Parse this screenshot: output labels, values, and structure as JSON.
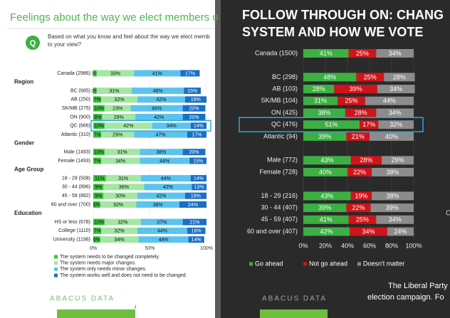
{
  "chart_data": [
    {
      "type": "bar",
      "orientation": "horizontal",
      "stacked": true,
      "title": "Feelings about the way we elect members o",
      "badge": "Q",
      "question": [
        "Based on what you know and feel about the way we elect memb",
        "to your view?"
      ],
      "categories": [
        "Canada (2986)",
        "BC (685)",
        "AB (250)",
        "SK/MB (275)",
        "ON (900)",
        "QC (666)",
        "Atlantic (310)",
        "Male (1493)",
        "Female (1493)",
        "18 - 29 (508)",
        "30 - 44 (896)",
        "45 - 59 (882)",
        "60 and over (700)",
        "HS or less (678)",
        "College (1110)",
        "University (1198)"
      ],
      "sections": [
        {
          "label": "Region",
          "start": 1
        },
        {
          "label": "Gender",
          "start": 7
        },
        {
          "label": "Age Group",
          "start": 9
        },
        {
          "label": "Education",
          "start": 13
        }
      ],
      "series": [
        {
          "name": "The system needs to be changed completely.",
          "color": "#3cc13c",
          "values": [
            3,
            3,
            7,
            10,
            8,
            10,
            7,
            10,
            7,
            11,
            9,
            9,
            6,
            10,
            7,
            6
          ],
          "value_labels": [
            "3%",
            "3%",
            "7%",
            "10%",
            "8%",
            "10%",
            "7%",
            "10%",
            "7%",
            "11%",
            "9%",
            "9%",
            "6%",
            "10%",
            "7%",
            "6%"
          ]
        },
        {
          "name": "The system needs major changes.",
          "color": "#a3e7a3",
          "values": [
            33,
            31,
            32,
            23,
            29,
            42,
            29,
            31,
            34,
            31,
            36,
            30,
            32,
            32,
            32,
            34
          ],
          "value_labels": [
            "33%",
            "31%",
            "32%",
            "23%",
            "29%",
            "42%",
            "29%",
            "31%",
            "34%",
            "31%",
            "36%",
            "30%",
            "32%",
            "32%",
            "32%",
            "34%"
          ]
        },
        {
          "name": "The system only needs minor changes.",
          "color": "#5cc3ee",
          "values": [
            41,
            46,
            42,
            46,
            42,
            34,
            47,
            38,
            44,
            44,
            42,
            42,
            38,
            37,
            44,
            44
          ],
          "value_labels": [
            "41%",
            "46%",
            "42%",
            "46%",
            "42%",
            "34%",
            "47%",
            "38%",
            "44%",
            "44%",
            "42%",
            "42%",
            "38%",
            "37%",
            "44%",
            "44%"
          ]
        },
        {
          "name": "The system works well and does not need to be changed.",
          "color": "#1a6fc4",
          "values": [
            17,
            15,
            19,
            20,
            20,
            14,
            17,
            20,
            15,
            14,
            13,
            19,
            24,
            21,
            16,
            14
          ],
          "value_labels": [
            "17%",
            "15%",
            "19%",
            "20%",
            "20%",
            "14%",
            "17%",
            "20%",
            "15%",
            "14%",
            "13%",
            "19%",
            "24%",
            "21%",
            "16%",
            "14%"
          ]
        }
      ],
      "xlim": [
        0,
        100
      ],
      "xticks": [
        {
          "value": 0,
          "label": "0%"
        },
        {
          "value": 50,
          "label": "50%"
        },
        {
          "value": 100,
          "label": "100%"
        }
      ],
      "footer": "ABACUS DATA",
      "page": "4"
    },
    {
      "type": "bar",
      "orientation": "horizontal",
      "stacked": true,
      "title": [
        "FOLLOW THROUGH ON: CHANG",
        "SYSTEM AND HOW WE VOTE"
      ],
      "categories": [
        "Canada (1500)",
        "BC (298)",
        "AB (103)",
        "SK/MB (104)",
        "ON (425)",
        "QC (476)",
        "Atlantic (94)",
        "Male (772)",
        "Female (728)",
        "18 - 29 (216)",
        "30 - 44 (407)",
        "45 - 59 (407)",
        "60 and over (407)"
      ],
      "series": [
        {
          "name": "Go ahead",
          "color": "#3cb043",
          "values": [
            41,
            48,
            28,
            31,
            38,
            51,
            39,
            43,
            40,
            43,
            39,
            41,
            42
          ],
          "value_labels": [
            "41%",
            "48%",
            "28%",
            "31%",
            "38%",
            "51%",
            "39%",
            "43%",
            "40%",
            "43%",
            "39%",
            "41%",
            "42%"
          ]
        },
        {
          "name": "Not go ahead",
          "color": "#d0141a",
          "values": [
            25,
            25,
            39,
            25,
            28,
            17,
            21,
            28,
            22,
            19,
            22,
            25,
            34
          ],
          "value_labels": [
            "25%",
            "25%",
            "39%",
            "25%",
            "28%",
            "17%",
            "21%",
            "28%",
            "22%",
            "19%",
            "22%",
            "25%",
            "34%"
          ]
        },
        {
          "name": "Doesn't matter",
          "color": "#8c8c8c",
          "values": [
            34,
            28,
            34,
            44,
            34,
            32,
            40,
            29,
            38,
            38,
            39,
            34,
            24
          ],
          "value_labels": [
            "34%",
            "28%",
            "34%",
            "44%",
            "34%",
            "32%",
            "40%",
            "29%",
            "38%",
            "38%",
            "39%",
            "34%",
            "24%"
          ]
        }
      ],
      "xlim": [
        0,
        100
      ],
      "xticks": [
        {
          "value": 0,
          "label": "0%"
        },
        {
          "value": 20,
          "label": "20%"
        },
        {
          "value": 40,
          "label": "40%"
        },
        {
          "value": 60,
          "label": "60%"
        },
        {
          "value": 80,
          "label": "80%"
        },
        {
          "value": 100,
          "label": "100%"
        }
      ],
      "note": [
        "The Liberal Party",
        "election campaign. Fo"
      ],
      "edge_text": "C",
      "footer": "ABACUS DATA"
    }
  ]
}
